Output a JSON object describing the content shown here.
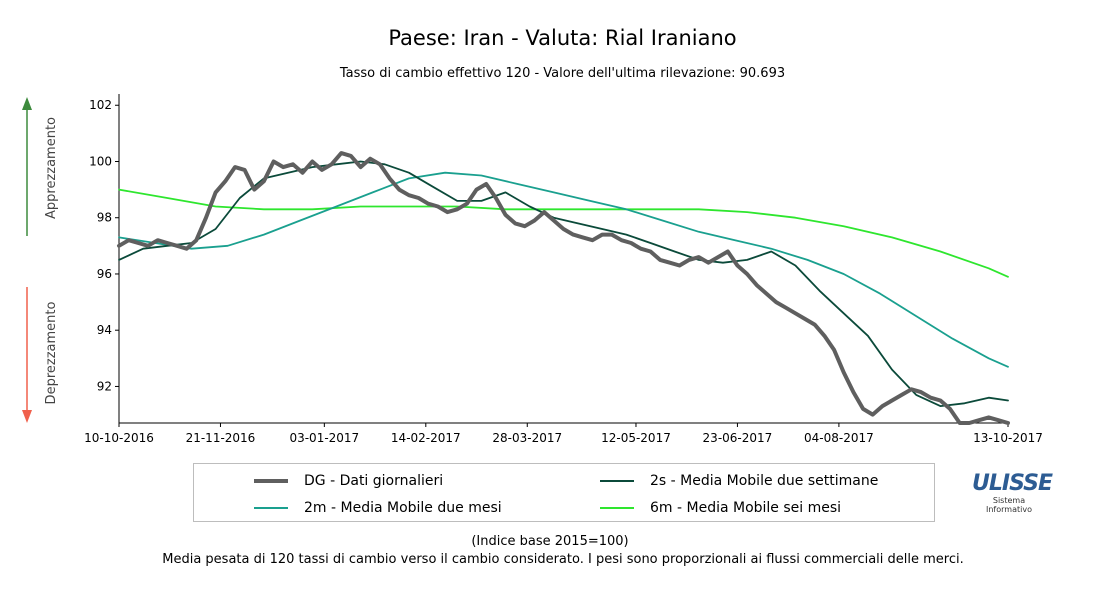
{
  "header": {
    "title": "Paese: Iran - Valuta: Rial Iraniano",
    "subtitle": "Tasso di cambio effettivo 120 - Valore dell'ultima rilevazione: 90.693"
  },
  "side_labels": {
    "top": "Apprezzamento",
    "bottom": "Deprezzamento",
    "top_color": "#3c8a3c",
    "bottom_color": "#f0604c"
  },
  "chart_data": {
    "type": "line",
    "title": "Paese: Iran - Valuta: Rial Iraniano",
    "subtitle": "Tasso di cambio effettivo 120 - Valore dell'ultima rilevazione: 90.693",
    "xlim": [
      "2016-10-10",
      "2017-10-13"
    ],
    "ylim": [
      90.7,
      102.4
    ],
    "x_ticks": [
      "10-10-2016",
      "21-11-2016",
      "03-01-2017",
      "14-02-2017",
      "28-03-2017",
      "12-05-2017",
      "23-06-2017",
      "04-08-2017",
      "13-10-2017"
    ],
    "y_ticks": [
      92,
      94,
      96,
      98,
      100,
      102
    ],
    "grid": false,
    "legend_position": "bottom",
    "series": [
      {
        "name": "DG - Dati giornalieri",
        "color": "#5f5f5f",
        "x": [
          "2016-10-10",
          "2016-10-14",
          "2016-10-18",
          "2016-10-22",
          "2016-10-26",
          "2016-10-30",
          "2016-11-03",
          "2016-11-07",
          "2016-11-11",
          "2016-11-15",
          "2016-11-19",
          "2016-11-23",
          "2016-11-27",
          "2016-12-01",
          "2016-12-05",
          "2016-12-09",
          "2016-12-13",
          "2016-12-17",
          "2016-12-21",
          "2016-12-25",
          "2016-12-29",
          "2017-01-02",
          "2017-01-06",
          "2017-01-10",
          "2017-01-14",
          "2017-01-18",
          "2017-01-22",
          "2017-01-26",
          "2017-01-30",
          "2017-02-03",
          "2017-02-07",
          "2017-02-11",
          "2017-02-15",
          "2017-02-19",
          "2017-02-23",
          "2017-02-27",
          "2017-03-03",
          "2017-03-07",
          "2017-03-11",
          "2017-03-15",
          "2017-03-19",
          "2017-03-23",
          "2017-03-27",
          "2017-03-31",
          "2017-04-04",
          "2017-04-08",
          "2017-04-12",
          "2017-04-16",
          "2017-04-20",
          "2017-04-24",
          "2017-04-28",
          "2017-05-02",
          "2017-05-06",
          "2017-05-10",
          "2017-05-14",
          "2017-05-18",
          "2017-05-22",
          "2017-05-26",
          "2017-05-30",
          "2017-06-03",
          "2017-06-07",
          "2017-06-11",
          "2017-06-15",
          "2017-06-19",
          "2017-06-23",
          "2017-06-27",
          "2017-07-01",
          "2017-07-05",
          "2017-07-09",
          "2017-07-13",
          "2017-07-17",
          "2017-07-21",
          "2017-07-25",
          "2017-07-29",
          "2017-08-02",
          "2017-08-06",
          "2017-08-10",
          "2017-08-14",
          "2017-08-18",
          "2017-08-22",
          "2017-08-26",
          "2017-08-30",
          "2017-09-03",
          "2017-09-07",
          "2017-09-11",
          "2017-09-15",
          "2017-09-19",
          "2017-09-23",
          "2017-09-27",
          "2017-10-01",
          "2017-10-05",
          "2017-10-09",
          "2017-10-13"
        ],
        "values": [
          97.0,
          97.2,
          97.1,
          97.0,
          97.2,
          97.1,
          97.0,
          96.9,
          97.2,
          98.0,
          98.9,
          99.3,
          99.8,
          99.7,
          99.0,
          99.3,
          100.0,
          99.8,
          99.9,
          99.6,
          100.0,
          99.7,
          99.9,
          100.3,
          100.2,
          99.8,
          100.1,
          99.9,
          99.4,
          99.0,
          98.8,
          98.7,
          98.5,
          98.4,
          98.2,
          98.3,
          98.5,
          99.0,
          99.2,
          98.7,
          98.1,
          97.8,
          97.7,
          97.9,
          98.2,
          97.9,
          97.6,
          97.4,
          97.3,
          97.2,
          97.4,
          97.4,
          97.2,
          97.1,
          96.9,
          96.8,
          96.5,
          96.4,
          96.3,
          96.5,
          96.6,
          96.4,
          96.6,
          96.8,
          96.3,
          96.0,
          95.6,
          95.3,
          95.0,
          94.8,
          94.6,
          94.4,
          94.2,
          93.8,
          93.3,
          92.5,
          91.8,
          91.2,
          91.0,
          91.3,
          91.5,
          91.7,
          91.9,
          91.8,
          91.6,
          91.5,
          91.2,
          90.7,
          90.7,
          90.8,
          90.9,
          90.8,
          90.7
        ]
      },
      {
        "name": "2s - Media Mobile due settimane",
        "color": "#0b4a3a",
        "x": [
          "2016-10-10",
          "2016-10-20",
          "2016-10-30",
          "2016-11-09",
          "2016-11-19",
          "2016-11-29",
          "2016-12-09",
          "2016-12-19",
          "2016-12-29",
          "2017-01-08",
          "2017-01-18",
          "2017-01-28",
          "2017-02-07",
          "2017-02-17",
          "2017-02-27",
          "2017-03-09",
          "2017-03-19",
          "2017-03-29",
          "2017-04-08",
          "2017-04-18",
          "2017-04-28",
          "2017-05-08",
          "2017-05-18",
          "2017-05-28",
          "2017-06-07",
          "2017-06-17",
          "2017-06-27",
          "2017-07-07",
          "2017-07-17",
          "2017-07-27",
          "2017-08-06",
          "2017-08-16",
          "2017-08-26",
          "2017-09-05",
          "2017-09-15",
          "2017-09-25",
          "2017-10-05",
          "2017-10-13"
        ],
        "values": [
          96.5,
          96.9,
          97.0,
          97.1,
          97.6,
          98.7,
          99.4,
          99.6,
          99.8,
          99.9,
          100.0,
          99.9,
          99.6,
          99.1,
          98.6,
          98.6,
          98.9,
          98.4,
          98.0,
          97.8,
          97.6,
          97.4,
          97.1,
          96.8,
          96.5,
          96.4,
          96.5,
          96.8,
          96.3,
          95.4,
          94.6,
          93.8,
          92.6,
          91.7,
          91.3,
          91.4,
          91.6,
          91.5
        ]
      },
      {
        "name": "2m - Media Mobile due mesi",
        "color": "#1aa08f",
        "x": [
          "2016-10-10",
          "2016-10-25",
          "2016-11-09",
          "2016-11-24",
          "2016-12-09",
          "2016-12-24",
          "2017-01-08",
          "2017-01-23",
          "2017-02-07",
          "2017-02-22",
          "2017-03-09",
          "2017-03-24",
          "2017-04-08",
          "2017-04-23",
          "2017-05-08",
          "2017-05-23",
          "2017-06-07",
          "2017-06-22",
          "2017-07-07",
          "2017-07-22",
          "2017-08-06",
          "2017-08-21",
          "2017-09-05",
          "2017-09-20",
          "2017-10-05",
          "2017-10-13"
        ],
        "values": [
          97.3,
          97.1,
          96.9,
          97.0,
          97.4,
          97.9,
          98.4,
          98.9,
          99.4,
          99.6,
          99.5,
          99.2,
          98.9,
          98.6,
          98.3,
          97.9,
          97.5,
          97.2,
          96.9,
          96.5,
          96.0,
          95.3,
          94.5,
          93.7,
          93.0,
          92.7
        ]
      },
      {
        "name": "6m - Media Mobile sei mesi",
        "color": "#2ee62e",
        "x": [
          "2016-10-10",
          "2016-10-30",
          "2016-11-19",
          "2016-12-09",
          "2016-12-29",
          "2017-01-18",
          "2017-02-07",
          "2017-02-27",
          "2017-03-19",
          "2017-04-08",
          "2017-04-28",
          "2017-05-18",
          "2017-06-07",
          "2017-06-27",
          "2017-07-17",
          "2017-08-06",
          "2017-08-26",
          "2017-09-15",
          "2017-10-05",
          "2017-10-13"
        ],
        "values": [
          99.0,
          98.7,
          98.4,
          98.3,
          98.3,
          98.4,
          98.4,
          98.4,
          98.3,
          98.3,
          98.3,
          98.3,
          98.3,
          98.2,
          98.0,
          97.7,
          97.3,
          96.8,
          96.2,
          95.9
        ]
      }
    ]
  },
  "legend": [
    {
      "label": "DG - Dati giornalieri",
      "color": "#5f5f5f",
      "width": 4
    },
    {
      "label": "2s - Media Mobile due settimane",
      "color": "#0b4a3a",
      "width": 2
    },
    {
      "label": "2m - Media Mobile due mesi",
      "color": "#1aa08f",
      "width": 2
    },
    {
      "label": "6m - Media Mobile sei mesi",
      "color": "#2ee62e",
      "width": 2
    }
  ],
  "logo": {
    "main": "ULISSE",
    "line1": "Sistema",
    "line2": "Informativo"
  },
  "notes": {
    "base": "(Indice base 2015=100)",
    "method": "Media pesata di 120 tassi di cambio verso il cambio considerato. I pesi sono proporzionali ai flussi commerciali delle merci."
  }
}
